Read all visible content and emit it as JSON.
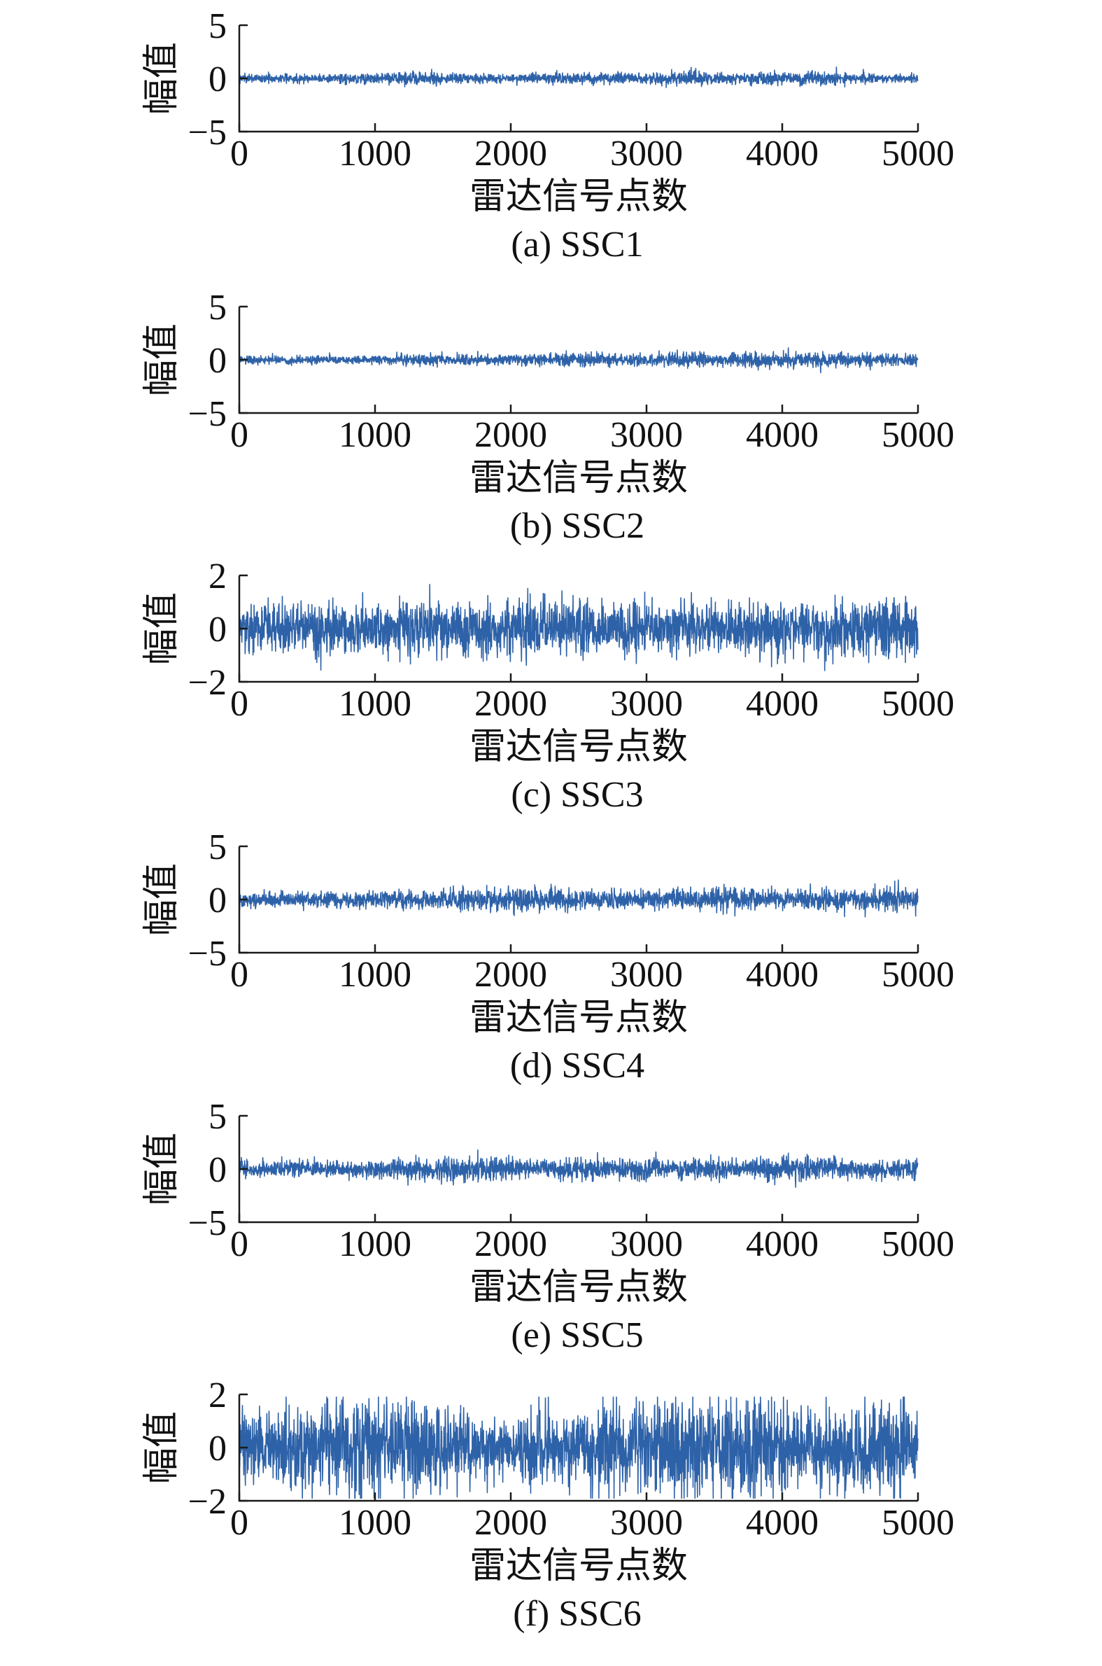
{
  "figure": {
    "signal_color": "#2e62a8"
  },
  "chart_data": [
    {
      "type": "line",
      "caption": "(a) SSC1",
      "xlabel": "雷达信号点数",
      "ylabel": "幅值",
      "xlim": [
        0,
        5000
      ],
      "ylim": [
        -5,
        5
      ],
      "xticks": [
        0,
        1000,
        2000,
        3000,
        4000,
        5000
      ],
      "yticks": [
        5,
        0,
        -5
      ],
      "ytick_labels": [
        "5",
        "0",
        "−5"
      ],
      "xtick_labels": [
        "0",
        "1000",
        "2000",
        "3000",
        "4000",
        "5000"
      ],
      "series": [
        {
          "x_range": [
            1,
            5000
          ],
          "amplitude_envelope": [
            [
              0,
              0.5
            ],
            [
              500,
              0.55
            ],
            [
              900,
              0.7
            ],
            [
              1000,
              0.6
            ],
            [
              1300,
              0.85
            ],
            [
              1500,
              0.6
            ],
            [
              2000,
              0.5
            ],
            [
              2300,
              0.7
            ],
            [
              2800,
              0.7
            ],
            [
              3000,
              0.55
            ],
            [
              3300,
              1.0
            ],
            [
              3500,
              0.7
            ],
            [
              3900,
              0.7
            ],
            [
              4300,
              0.8
            ],
            [
              4700,
              0.6
            ],
            [
              5000,
              0.55
            ]
          ]
        }
      ]
    },
    {
      "type": "line",
      "caption": "(b) SSC2",
      "xlabel": "雷达信号点数",
      "ylabel": "幅值",
      "xlim": [
        0,
        5000
      ],
      "ylim": [
        -5,
        5
      ],
      "xticks": [
        0,
        1000,
        2000,
        3000,
        4000,
        5000
      ],
      "yticks": [
        5,
        0,
        -5
      ],
      "ytick_labels": [
        "5",
        "0",
        "−5"
      ],
      "xtick_labels": [
        "0",
        "1000",
        "2000",
        "3000",
        "4000",
        "5000"
      ],
      "series": [
        {
          "x_range": [
            1,
            5000
          ],
          "amplitude_envelope": [
            [
              0,
              0.5
            ],
            [
              500,
              0.5
            ],
            [
              1000,
              0.55
            ],
            [
              1300,
              0.8
            ],
            [
              1800,
              0.55
            ],
            [
              2300,
              0.75
            ],
            [
              2900,
              0.8
            ],
            [
              3000,
              0.6
            ],
            [
              3300,
              1.1
            ],
            [
              3500,
              0.75
            ],
            [
              3900,
              1.0
            ],
            [
              4300,
              0.9
            ],
            [
              4700,
              0.75
            ],
            [
              5000,
              0.7
            ]
          ]
        }
      ]
    },
    {
      "type": "line",
      "caption": "(c) SSC3",
      "xlabel": "雷达信号点数",
      "ylabel": "幅值",
      "xlim": [
        0,
        5000
      ],
      "ylim": [
        -2,
        2
      ],
      "xticks": [
        0,
        1000,
        2000,
        3000,
        4000,
        5000
      ],
      "yticks": [
        2,
        0,
        -2
      ],
      "ytick_labels": [
        "2",
        "0",
        "−2"
      ],
      "xtick_labels": [
        "0",
        "1000",
        "2000",
        "3000",
        "4000",
        "5000"
      ],
      "series": [
        {
          "x_range": [
            1,
            5000
          ],
          "amplitude_envelope": [
            [
              0,
              0.8
            ],
            [
              1000,
              0.85
            ],
            [
              1800,
              1.0
            ],
            [
              2500,
              0.9
            ],
            [
              3000,
              0.85
            ],
            [
              4000,
              0.9
            ],
            [
              5000,
              1.1
            ]
          ]
        }
      ]
    },
    {
      "type": "line",
      "caption": "(d) SSC4",
      "xlabel": "雷达信号点数",
      "ylabel": "幅值",
      "xlim": [
        0,
        5000
      ],
      "ylim": [
        -5,
        5
      ],
      "xticks": [
        0,
        1000,
        2000,
        3000,
        4000,
        5000
      ],
      "yticks": [
        5,
        0,
        -5
      ],
      "ytick_labels": [
        "5",
        "0",
        "−5"
      ],
      "xtick_labels": [
        "0",
        "1000",
        "2000",
        "3000",
        "4000",
        "5000"
      ],
      "series": [
        {
          "x_range": [
            1,
            5000
          ],
          "amplitude_envelope": [
            [
              0,
              0.9
            ],
            [
              1000,
              1.0
            ],
            [
              2200,
              1.5
            ],
            [
              2400,
              1.2
            ],
            [
              3000,
              1.1
            ],
            [
              3600,
              1.6
            ],
            [
              4000,
              1.1
            ],
            [
              4900,
              1.5
            ],
            [
              5000,
              1.2
            ]
          ]
        }
      ]
    },
    {
      "type": "line",
      "caption": "(e) SSC5",
      "xlabel": "雷达信号点数",
      "ylabel": "幅值",
      "xlim": [
        0,
        5000
      ],
      "ylim": [
        -5,
        5
      ],
      "xticks": [
        0,
        1000,
        2000,
        3000,
        4000,
        5000
      ],
      "yticks": [
        5,
        0,
        -5
      ],
      "ytick_labels": [
        "5",
        "0",
        "−5"
      ],
      "xtick_labels": [
        "0",
        "1000",
        "2000",
        "3000",
        "4000",
        "5000"
      ],
      "series": [
        {
          "x_range": [
            1,
            5000
          ],
          "amplitude_envelope": [
            [
              0,
              1.0
            ],
            [
              1000,
              1.1
            ],
            [
              1800,
              1.7
            ],
            [
              2200,
              1.1
            ],
            [
              2900,
              1.5
            ],
            [
              3500,
              1.1
            ],
            [
              4100,
              1.6
            ],
            [
              4500,
              1.2
            ],
            [
              5000,
              1.1
            ]
          ]
        }
      ]
    },
    {
      "type": "line",
      "caption": "(f) SSC6",
      "xlabel": "雷达信号点数",
      "ylabel": "幅值",
      "xlim": [
        0,
        5000
      ],
      "ylim": [
        -2,
        2
      ],
      "xticks": [
        0,
        1000,
        2000,
        3000,
        4000,
        5000
      ],
      "yticks": [
        2,
        0,
        -2
      ],
      "ytick_labels": [
        "2",
        "0",
        "−2"
      ],
      "xtick_labels": [
        "0",
        "1000",
        "2000",
        "3000",
        "4000",
        "5000"
      ],
      "series": [
        {
          "x_range": [
            1,
            5000
          ],
          "amplitude_envelope": [
            [
              0,
              1.1
            ],
            [
              900,
              1.8
            ],
            [
              1500,
              1.3
            ],
            [
              2000,
              1.2
            ],
            [
              3000,
              1.6
            ],
            [
              3900,
              1.7
            ],
            [
              4400,
              1.3
            ],
            [
              4800,
              1.7
            ],
            [
              5000,
              1.2
            ]
          ]
        }
      ]
    }
  ]
}
